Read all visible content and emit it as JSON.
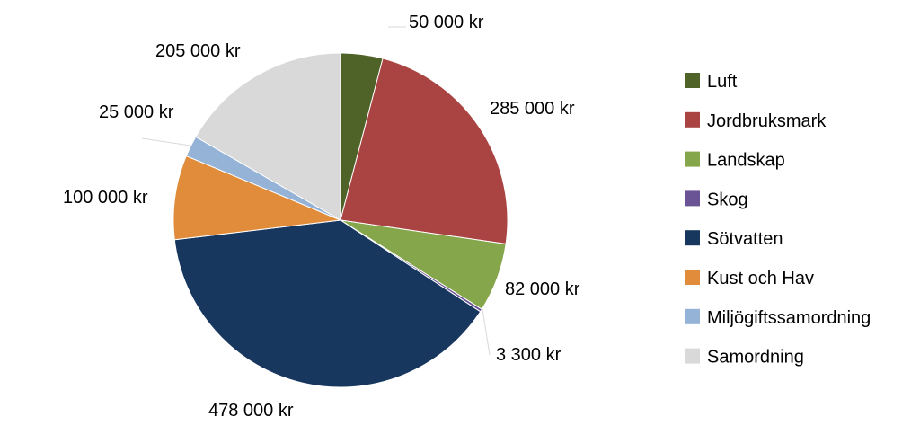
{
  "chart_data": {
    "type": "pie",
    "title": "",
    "legend_position": "right",
    "start": "top, clockwise",
    "slices": [
      {
        "name": "Luft",
        "value": 50000,
        "label": "50 000 kr",
        "color": "#4f6228"
      },
      {
        "name": "Jordbruksmark",
        "value": 285000,
        "label": "285 000 kr",
        "color": "#a94442"
      },
      {
        "name": "Landskap",
        "value": 82000,
        "label": "82 000 kr",
        "color": "#86a64b"
      },
      {
        "name": "Skog",
        "value": 3300,
        "label": "3 300 kr",
        "color": "#6a5496"
      },
      {
        "name": "Sötvatten",
        "value": 478000,
        "label": "478 000 kr",
        "color": "#17375e"
      },
      {
        "name": "Kust och Hav",
        "value": 100000,
        "label": "100 000 kr",
        "color": "#e08c3a"
      },
      {
        "name": "Miljögiftssamordning",
        "value": 25000,
        "label": "25 000 kr",
        "color": "#95b3d7"
      },
      {
        "name": "Samordning",
        "value": 205000,
        "label": "205 000 kr",
        "color": "#d9d9d9"
      }
    ]
  }
}
